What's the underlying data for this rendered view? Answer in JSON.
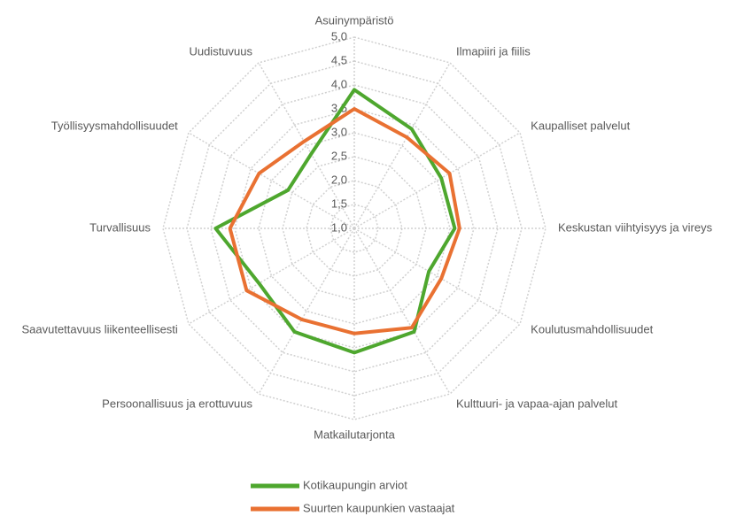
{
  "chart_data": {
    "type": "radar",
    "categories": [
      "Asuinympäristö",
      "Ilmapiiri ja fiilis",
      "Kaupalliset palvelut",
      "Keskustan viihtyisyys ja vireys",
      "Koulutusmahdollisuudet",
      "Kulttuuri- ja vapaa-ajan palvelut",
      "Matkailutarjonta",
      "Persoonallisuus ja erottuvuus",
      "Saavutettavuus liikenteellisesti",
      "Turvallisuus",
      "Työllisyysmahdollisuudet",
      "Uudistuvuus"
    ],
    "series": [
      {
        "name": "Kotikaupungin arviot",
        "color": "#4ea72e",
        "values": [
          3.9,
          3.4,
          3.1,
          3.1,
          2.8,
          3.5,
          3.6,
          3.5,
          3.3,
          3.9,
          2.6,
          2.8
        ]
      },
      {
        "name": "Suurten kaupunkien vastaajat",
        "color": "#e97132",
        "values": [
          3.5,
          3.2,
          3.3,
          3.2,
          3.1,
          3.4,
          3.2,
          3.2,
          3.6,
          3.6,
          3.3,
          3.1
        ]
      }
    ],
    "ylim": [
      1,
      5
    ],
    "yticks": [
      {
        "value": 1,
        "label": "1,0"
      },
      {
        "value": 1.5,
        "label": "1,5"
      },
      {
        "value": 2,
        "label": "2,0"
      },
      {
        "value": 2.5,
        "label": "2,5"
      },
      {
        "value": 3,
        "label": "3,0"
      },
      {
        "value": 3.5,
        "label": "3,5"
      },
      {
        "value": 4,
        "label": "4,0"
      },
      {
        "value": 4.5,
        "label": "4,5"
      },
      {
        "value": 5,
        "label": "5,0"
      }
    ],
    "grid": true,
    "legend": "bottom"
  }
}
